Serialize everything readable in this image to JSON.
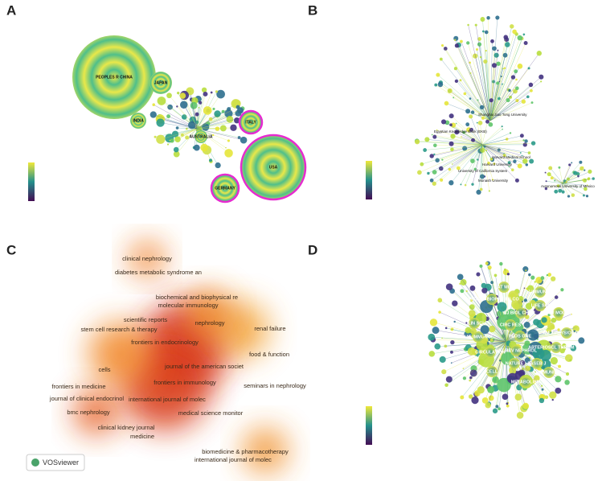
{
  "panels": [
    {
      "letter": "A",
      "labels": [
        "PEOPLES R CHINA",
        "JAPAN",
        "INDIA",
        "USA",
        "GERMANY",
        "ITALY",
        "AUSTRALIA"
      ]
    },
    {
      "letter": "B",
      "labels": [
        "Shanghai Jiao Tong University",
        "Egyptian Knowledge Bank (EKB)",
        "Harvard Medical School",
        "Harvard University",
        "University of California System",
        "Monash University",
        "Autonomous University of Mexico"
      ]
    },
    {
      "letter": "C",
      "labels": [
        "clinical nephrology",
        "diabetes metabolic syndrome an",
        "biochemical and biophysical re",
        "molecular immunology",
        "scientific reports",
        "nephrology",
        "stem cell research & therapy",
        "renal failure",
        "frontiers in endocrinology",
        "food & function",
        "journal of the american societ",
        "cells",
        "frontiers in immunology",
        "seminars in nephrology",
        "frontiers in medicine",
        "international journal of molec",
        "journal of clinical endocrinol",
        "bmc nephrology",
        "medical science monitor",
        "clinical kidney journal",
        "medicine",
        "biomedicine & pharmacotherapy",
        "international journal of molec"
      ],
      "badge": "VOSviewer"
    },
    {
      "letter": "D",
      "labels": [
        "NAT MED",
        "J IMMUNOL",
        "BIOCHEM BIOPH RES CO",
        "LIFE SCI",
        "J BIOL CHEM",
        "INT J MOL SCI",
        "CLIN SCI",
        "CIRC RES",
        "PLOS ONE",
        "AM J PHYSIOL-RENAL",
        "NAT IMMUNOL",
        "CIRCULATION",
        "NAT REV NEPHROL",
        "ARTERIOSCL THROM VAS",
        "NATURE",
        "FASEB J",
        "CELL",
        "IMMUNITY",
        "METABOLISM"
      ]
    }
  ]
}
